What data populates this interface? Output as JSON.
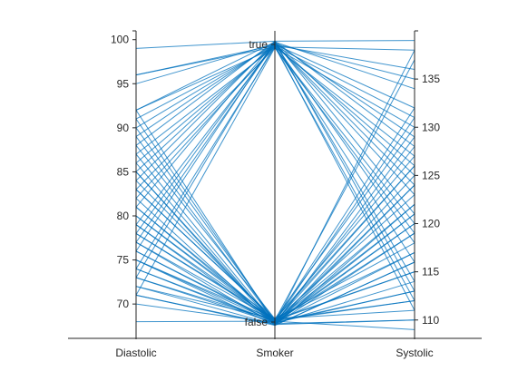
{
  "chart_data": {
    "type": "parallel-coordinates",
    "title": "",
    "categories": [
      "Diastolic",
      "Smoker",
      "Systolic"
    ],
    "axes": [
      {
        "name": "Diastolic",
        "ylim": [
          66,
          101
        ],
        "ticks": [
          70,
          75,
          80,
          85,
          90,
          95,
          100
        ],
        "tick_side": "left"
      },
      {
        "name": "Smoker",
        "levels": [
          "false",
          "true"
        ],
        "tick_side": "left"
      },
      {
        "name": "Systolic",
        "ylim": [
          108,
          140
        ],
        "ticks": [
          110,
          115,
          120,
          125,
          130,
          135
        ],
        "tick_side": "right"
      }
    ],
    "series": [
      {
        "values": [
          99,
          "true",
          139
        ]
      },
      {
        "values": [
          96,
          "true",
          138
        ]
      },
      {
        "values": [
          96,
          "true",
          136
        ]
      },
      {
        "values": [
          95,
          "true",
          135
        ]
      },
      {
        "values": [
          92,
          "true",
          134
        ]
      },
      {
        "values": [
          92,
          "true",
          130
        ]
      },
      {
        "values": [
          91,
          "true",
          131
        ]
      },
      {
        "values": [
          90,
          "true",
          132
        ]
      },
      {
        "values": [
          89,
          "true",
          129
        ]
      },
      {
        "values": [
          88,
          "true",
          128
        ]
      },
      {
        "values": [
          87,
          "true",
          127
        ]
      },
      {
        "values": [
          86,
          "true",
          126
        ]
      },
      {
        "values": [
          85,
          "true",
          124
        ]
      },
      {
        "values": [
          84,
          "true",
          121
        ]
      },
      {
        "values": [
          83,
          "true",
          119
        ]
      },
      {
        "values": [
          82,
          "true",
          116
        ]
      },
      {
        "values": [
          79,
          "true",
          118
        ]
      },
      {
        "values": [
          78,
          "true",
          114
        ]
      },
      {
        "values": [
          76,
          "true",
          113
        ]
      },
      {
        "values": [
          74,
          "true",
          112
        ]
      },
      {
        "values": [
          73,
          "true",
          111
        ]
      },
      {
        "values": [
          77,
          "true",
          123
        ]
      },
      {
        "values": [
          81,
          "true",
          125
        ]
      },
      {
        "values": [
          71,
          "true",
          120
        ]
      },
      {
        "values": [
          92,
          "false",
          138
        ]
      },
      {
        "values": [
          91,
          "false",
          131
        ]
      },
      {
        "values": [
          90,
          "false",
          137
        ]
      },
      {
        "values": [
          88,
          "false",
          130
        ]
      },
      {
        "values": [
          86,
          "false",
          125
        ]
      },
      {
        "values": [
          85,
          "false",
          128
        ]
      },
      {
        "values": [
          84,
          "false",
          122
        ]
      },
      {
        "values": [
          83,
          "false",
          127
        ]
      },
      {
        "values": [
          82,
          "false",
          124
        ]
      },
      {
        "values": [
          81,
          "false",
          120
        ]
      },
      {
        "values": [
          80,
          "false",
          126
        ]
      },
      {
        "values": [
          79,
          "false",
          123
        ]
      },
      {
        "values": [
          78,
          "false",
          118
        ]
      },
      {
        "values": [
          77,
          "false",
          119
        ]
      },
      {
        "values": [
          76,
          "false",
          117
        ]
      },
      {
        "values": [
          76,
          "false",
          121
        ]
      },
      {
        "values": [
          75,
          "false",
          115
        ]
      },
      {
        "values": [
          75,
          "false",
          116
        ]
      },
      {
        "values": [
          74,
          "false",
          114
        ]
      },
      {
        "values": [
          74,
          "false",
          113
        ]
      },
      {
        "values": [
          73,
          "false",
          112
        ]
      },
      {
        "values": [
          72,
          "false",
          111
        ]
      },
      {
        "values": [
          71,
          "false",
          110
        ]
      },
      {
        "values": [
          70,
          "false",
          113
        ]
      },
      {
        "values": [
          68,
          "false",
          109
        ]
      },
      {
        "values": [
          80,
          "false",
          112
        ]
      },
      {
        "values": [
          85,
          "false",
          116
        ]
      },
      {
        "values": [
          87,
          "false",
          121
        ]
      },
      {
        "values": [
          89,
          "false",
          119
        ]
      },
      {
        "values": [
          78,
          "false",
          115
        ]
      },
      {
        "values": [
          83,
          "false",
          117
        ]
      },
      {
        "values": [
          72,
          "false",
          129
        ]
      },
      {
        "values": [
          73,
          "false",
          124
        ]
      },
      {
        "values": [
          81,
          "false",
          132
        ]
      },
      {
        "values": [
          77,
          "false",
          126
        ]
      },
      {
        "values": [
          71,
          "false",
          122
        ]
      },
      {
        "values": [
          79,
          "false",
          110
        ]
      },
      {
        "values": [
          75,
          "false",
          120
        ]
      }
    ],
    "colors": {
      "line": "#0072BD",
      "axis": "#262626"
    }
  }
}
